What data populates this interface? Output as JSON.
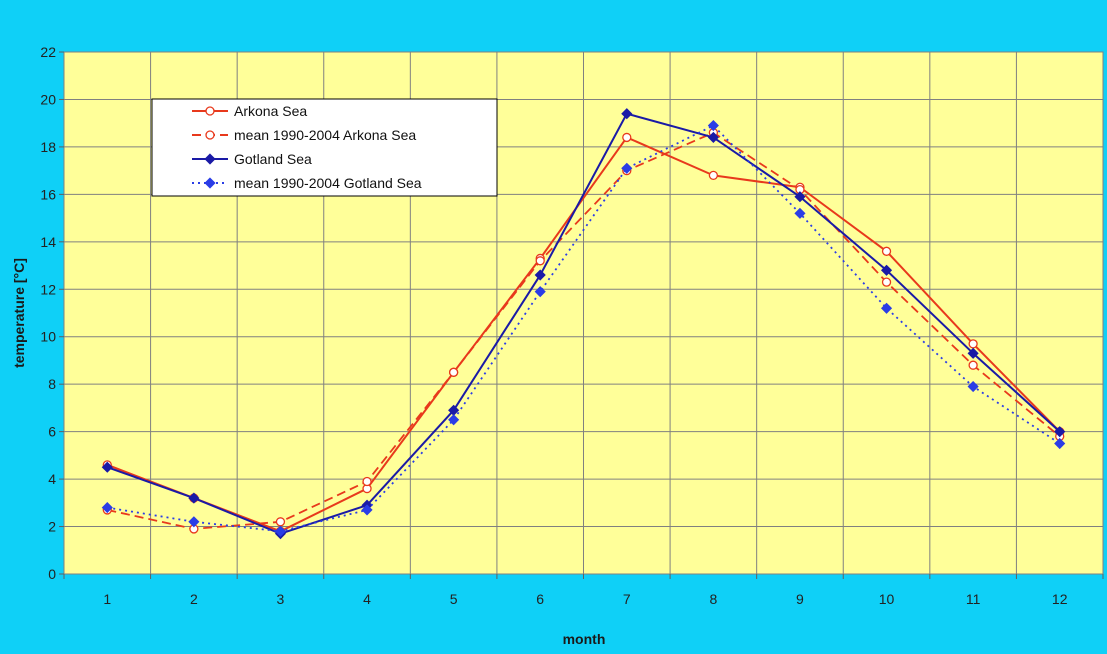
{
  "chart_data": {
    "type": "line",
    "xlabel": "month",
    "ylabel": "temperature [°C]",
    "categories": [
      "1",
      "2",
      "3",
      "4",
      "5",
      "6",
      "7",
      "8",
      "9",
      "10",
      "11",
      "12"
    ],
    "x": [
      1,
      2,
      3,
      4,
      5,
      6,
      7,
      8,
      9,
      10,
      11,
      12
    ],
    "ylim": [
      0,
      22
    ],
    "yticks": [
      0,
      2,
      4,
      6,
      8,
      10,
      12,
      14,
      16,
      18,
      20,
      22
    ],
    "grid": true,
    "legend_position": "top-left",
    "colors": {
      "plot_bg": "#ffff99",
      "page_bg": "#0fd0f7",
      "red": "#e8391c",
      "blue": "#1a1aa6",
      "blue_marker": "#2a3de6"
    },
    "series": [
      {
        "name": "Arkona Sea",
        "style": "solid",
        "color": "#e8391c",
        "marker": "open-circle",
        "values": [
          4.6,
          3.2,
          1.8,
          3.6,
          8.5,
          13.3,
          18.4,
          16.8,
          16.3,
          13.6,
          9.7,
          6.0
        ]
      },
      {
        "name": "mean 1990-2004 Arkona Sea",
        "style": "dashed",
        "color": "#e8391c",
        "marker": "open-circle",
        "values": [
          2.7,
          1.9,
          2.2,
          3.9,
          8.5,
          13.2,
          17.0,
          18.6,
          16.2,
          12.3,
          8.8,
          5.8
        ]
      },
      {
        "name": "Gotland Sea",
        "style": "solid",
        "color": "#1a1aa6",
        "marker": "filled-diamond",
        "values": [
          4.5,
          3.2,
          1.7,
          2.9,
          6.9,
          12.6,
          19.4,
          18.4,
          15.9,
          12.8,
          9.3,
          6.0
        ]
      },
      {
        "name": "mean 1990-2004 Gotland Sea",
        "style": "dotted",
        "color": "#2a3de6",
        "marker": "filled-diamond",
        "values": [
          2.8,
          2.2,
          1.8,
          2.7,
          6.5,
          11.9,
          17.1,
          18.9,
          15.2,
          11.2,
          7.9,
          5.5
        ]
      }
    ]
  }
}
